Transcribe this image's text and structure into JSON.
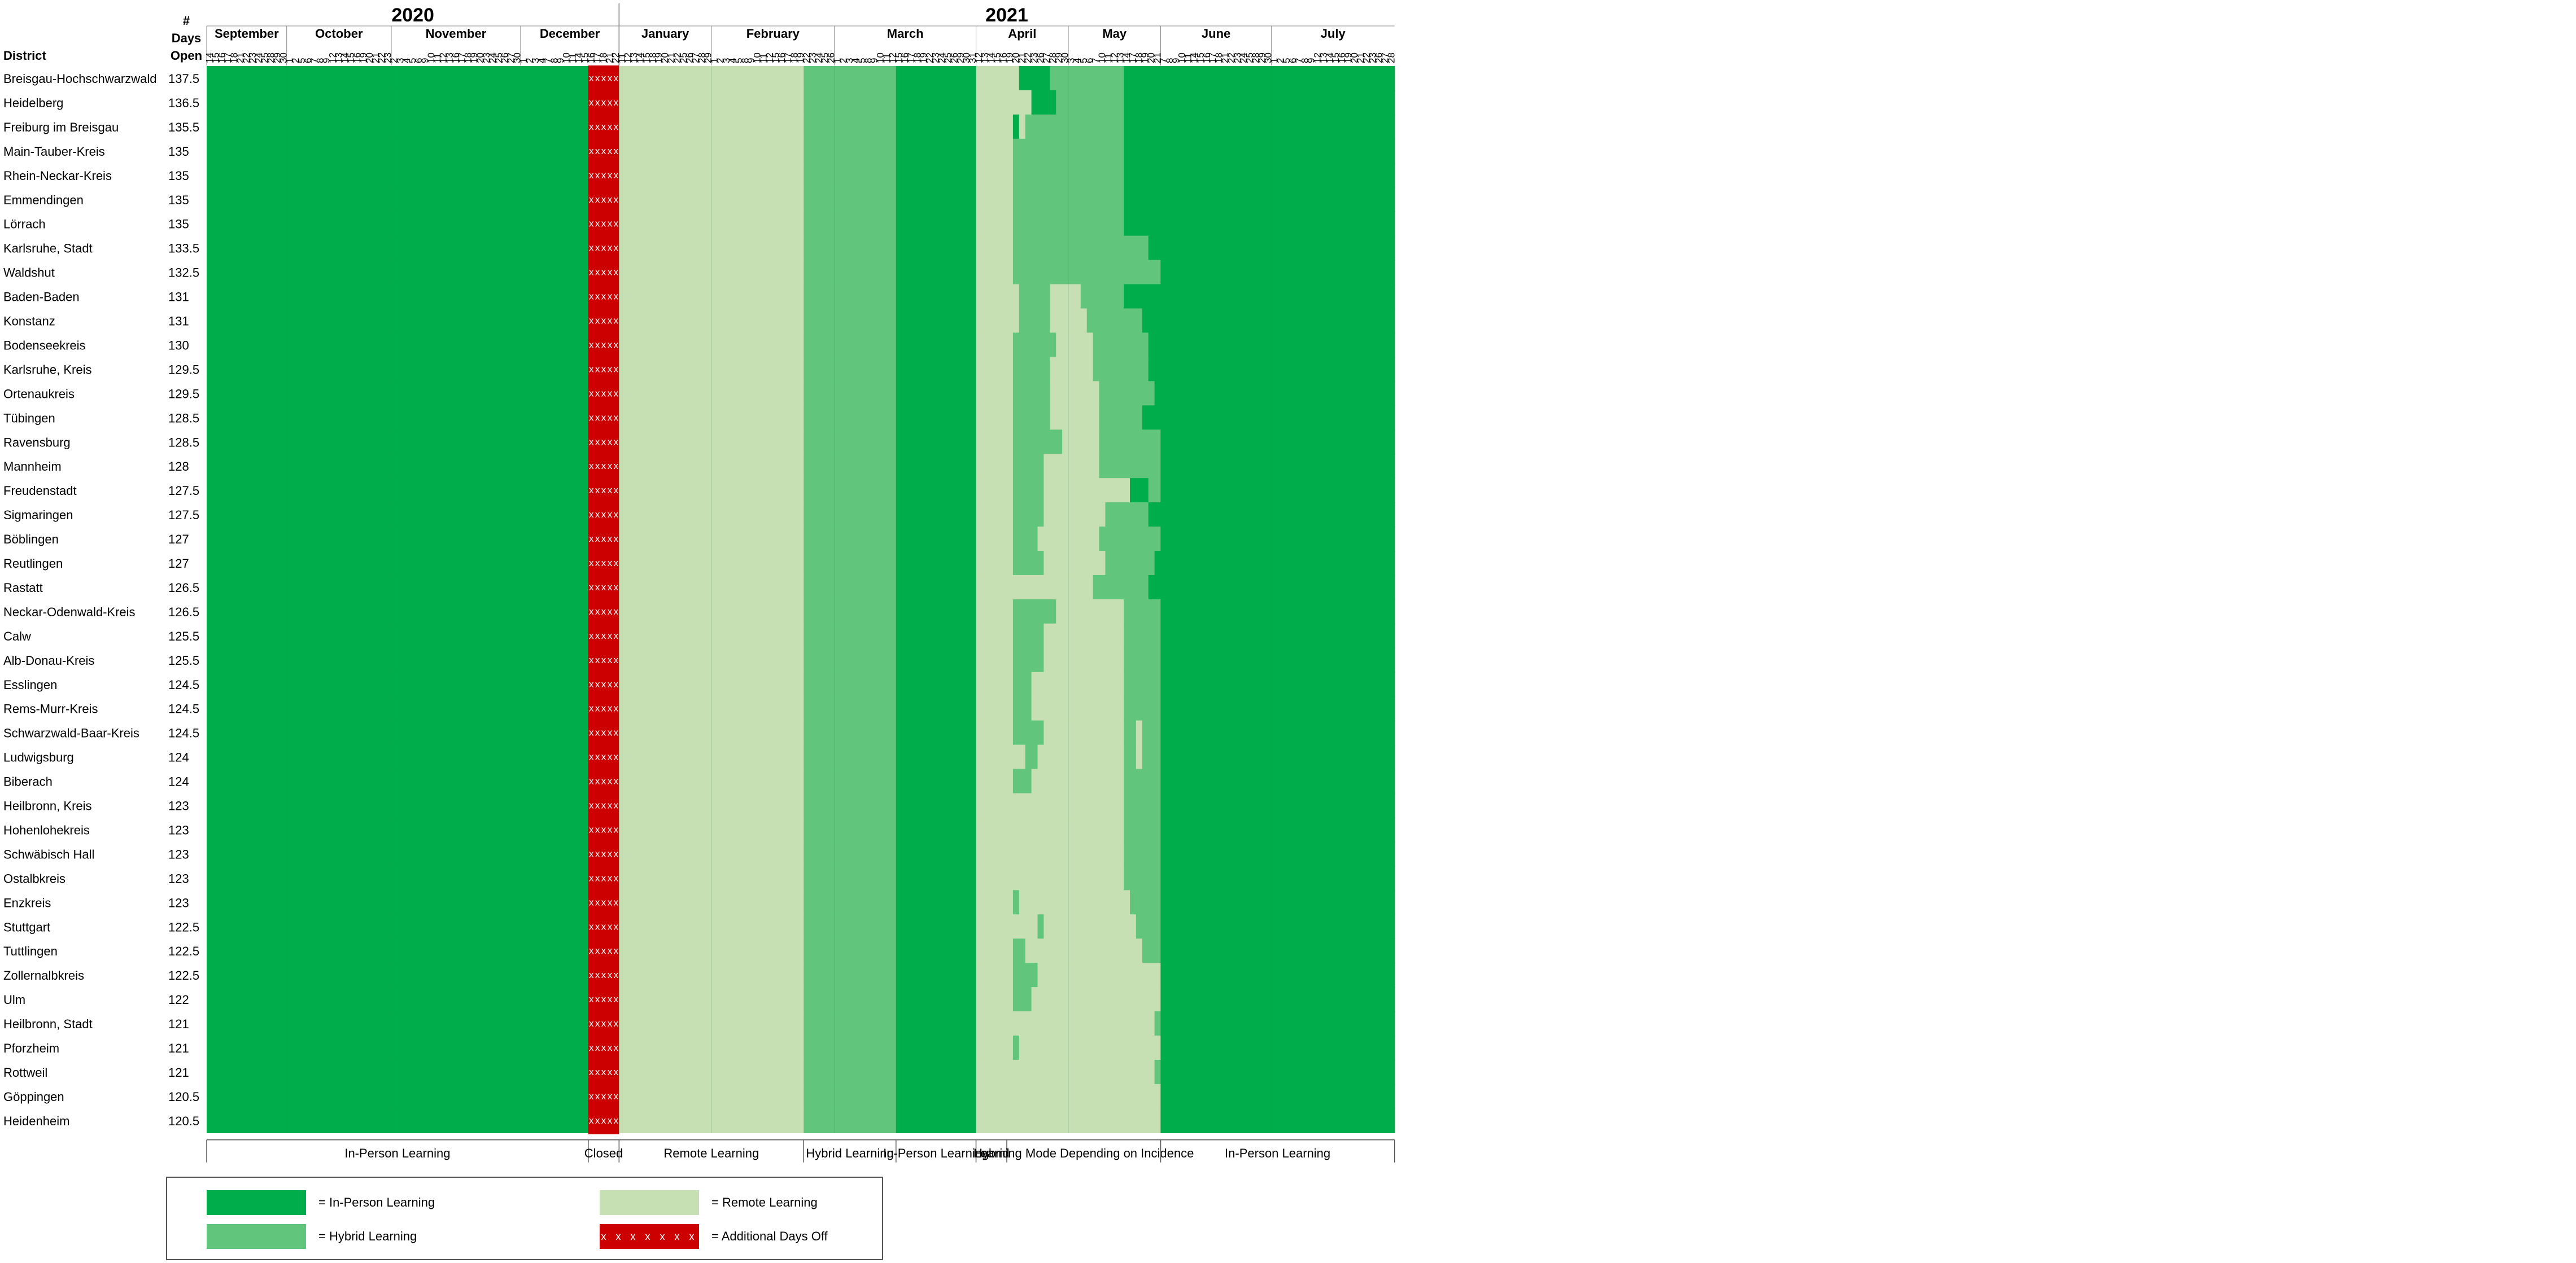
{
  "chart_data": {
    "type": "heatmap",
    "title": "",
    "header": {
      "col1": "District",
      "col2_lines": [
        "#",
        "Days",
        "Open"
      ]
    },
    "years": [
      {
        "label": "2020",
        "span": [
          "2020-09-14",
          "2020-12-22"
        ]
      },
      {
        "label": "2021",
        "span": [
          "2021-01-11",
          "2021-07-28"
        ]
      }
    ],
    "months": [
      {
        "label": "September",
        "year": 2020,
        "days": [
          14,
          15,
          16,
          17,
          18,
          21,
          22,
          23,
          24,
          25,
          28,
          29,
          30
        ]
      },
      {
        "label": "October",
        "year": 2020,
        "days": [
          1,
          2,
          5,
          6,
          7,
          8,
          9,
          12,
          13,
          14,
          15,
          16,
          19,
          20,
          21,
          22,
          23
        ]
      },
      {
        "label": "November",
        "year": 2020,
        "days": [
          2,
          3,
          4,
          5,
          6,
          9,
          10,
          11,
          12,
          13,
          16,
          17,
          18,
          19,
          20,
          23,
          24,
          25,
          26,
          27,
          30
        ]
      },
      {
        "label": "December",
        "year": 2020,
        "days": [
          1,
          2,
          3,
          4,
          7,
          8,
          9,
          10,
          11,
          14,
          15,
          16,
          17,
          18,
          21,
          22
        ]
      },
      {
        "label": "January",
        "year": 2021,
        "days": [
          11,
          12,
          13,
          14,
          15,
          18,
          19,
          20,
          21,
          22,
          25,
          26,
          27,
          28,
          29
        ]
      },
      {
        "label": "February",
        "year": 2021,
        "days": [
          1,
          2,
          3,
          4,
          5,
          8,
          9,
          10,
          11,
          12,
          15,
          16,
          17,
          18,
          19,
          22,
          23,
          24,
          25,
          26
        ]
      },
      {
        "label": "March",
        "year": 2021,
        "days": [
          1,
          2,
          3,
          4,
          5,
          8,
          9,
          10,
          11,
          12,
          15,
          16,
          17,
          18,
          19,
          22,
          23,
          24,
          25,
          26,
          29,
          30,
          31
        ]
      },
      {
        "label": "April",
        "year": 2021,
        "days": [
          12,
          13,
          14,
          15,
          16,
          19,
          20,
          21,
          22,
          23,
          26,
          27,
          28,
          29,
          30
        ]
      },
      {
        "label": "May",
        "year": 2021,
        "days": [
          3,
          4,
          5,
          6,
          7,
          10,
          11,
          12,
          13,
          14,
          17,
          18,
          19,
          20,
          21
        ]
      },
      {
        "label": "June",
        "year": 2021,
        "days": [
          7,
          8,
          9,
          10,
          11,
          14,
          15,
          16,
          17,
          18,
          21,
          22,
          23,
          24,
          25,
          28,
          29,
          30
        ]
      },
      {
        "label": "July",
        "year": 2021,
        "days": [
          1,
          2,
          5,
          6,
          7,
          8,
          9,
          12,
          13,
          14,
          15,
          16,
          19,
          20,
          21,
          22,
          23,
          26,
          27,
          28
        ]
      }
    ],
    "phases": [
      {
        "label": "In-Person Learning",
        "from": "2020-09-14",
        "to": "2020-12-15",
        "mode": "in_person"
      },
      {
        "label": "Closed",
        "from": "2020-12-16",
        "to": "2020-12-22",
        "mode": "off"
      },
      {
        "label": "Remote Learning",
        "from": "2021-01-11",
        "to": "2021-02-19",
        "mode": "remote"
      },
      {
        "label": "Hybrid Learning",
        "from": "2021-02-22",
        "to": "2021-03-12",
        "mode": "hybrid"
      },
      {
        "label": "In-Person Learning",
        "from": "2021-03-15",
        "to": "2021-03-31",
        "mode": "in_person"
      },
      {
        "label": "Hybrid",
        "from": "2021-04-12",
        "to": "2021-04-16",
        "mode": "remote"
      },
      {
        "label": "Learning Mode Depending on Incidence",
        "from": "2021-04-19",
        "to": "2021-05-21",
        "mode": "varies"
      },
      {
        "label": "In-Person Learning",
        "from": "2021-06-07",
        "to": "2021-07-28",
        "mode": "in_person"
      }
    ],
    "districts": [
      {
        "name": "Breisgau-Hochschwarzwald",
        "days_open": "137.5",
        "apr": "RRRRRRRIIIIIHHH",
        "may": "HHHHHHHHHIIIIII"
      },
      {
        "name": "Heidelberg",
        "days_open": "136.5",
        "apr": "RRRRRRRRRIIIIHH",
        "may": "HHHHHHHHHIIIIII"
      },
      {
        "name": "Freiburg im Breisgau",
        "days_open": "135.5",
        "apr": "RRRRRRIRHHHHHHH",
        "may": "HHHHHHHHHIIIIII"
      },
      {
        "name": "Main-Tauber-Kreis",
        "days_open": "135",
        "apr": "RRRRRRHHHHHHHHH",
        "may": "HHHHHHHHHIIIIII"
      },
      {
        "name": "Rhein-Neckar-Kreis",
        "days_open": "135",
        "apr": "RRRRRRHHHHHHHHH",
        "may": "HHHHHHHHHIIIIII"
      },
      {
        "name": "Emmendingen",
        "days_open": "135",
        "apr": "RRRRRRHHHHHHHHH",
        "may": "HHHHHHHHHIIIIII"
      },
      {
        "name": "Lörrach",
        "days_open": "135",
        "apr": "RRRRRRHHHHHHHHH",
        "may": "HHHHHHHHHIIIIII"
      },
      {
        "name": "Karlsruhe, Stadt",
        "days_open": "133.5",
        "apr": "RRRRRRHHHHHHHHH",
        "may": "HHHHHHHHHHHHHII"
      },
      {
        "name": "Waldshut",
        "days_open": "132.5",
        "apr": "RRRRRRHHHHHHHHH",
        "may": "HHHHHHHHHHHHHHH"
      },
      {
        "name": "Baden-Baden",
        "days_open": "131",
        "apr": "RRRRRRRHHHHHRRR",
        "may": "RRHHHHHHHIIIIII"
      },
      {
        "name": "Konstanz",
        "days_open": "131",
        "apr": "RRRRRRRHHHHHRRR",
        "may": "RRRHHHHHHHHHIII"
      },
      {
        "name": "Bodenseekreis",
        "days_open": "130",
        "apr": "RRRRRRHHHHHHHRR",
        "may": "RRRRHHHHHHHHHII"
      },
      {
        "name": "Karlsruhe, Kreis",
        "days_open": "129.5",
        "apr": "RRRRRRHHHHHHRRR",
        "may": "RRRRHHHHHHHHHII"
      },
      {
        "name": "Ortenaukreis",
        "days_open": "129.5",
        "apr": "RRRRRRHHHHHHRRR",
        "may": "RRRRRHHHHHHHHHI"
      },
      {
        "name": "Tübingen",
        "days_open": "128.5",
        "apr": "RRRRRRHHHHHHRRR",
        "may": "RRRRRHHHHHHHIII"
      },
      {
        "name": "Ravensburg",
        "days_open": "128.5",
        "apr": "RRRRRRHHHHHHHHR",
        "may": "RRRRRHHHHHHHHHH"
      },
      {
        "name": "Mannheim",
        "days_open": "128",
        "apr": "RRRRRRHHHHHRRRR",
        "may": "RRRRRHHHHHHHHHH"
      },
      {
        "name": "Freudenstadt",
        "days_open": "127.5",
        "apr": "RRRRRRHHHHHRRRR",
        "may": "RRRRRRRRRRIIIHH"
      },
      {
        "name": "Sigmaringen",
        "days_open": "127.5",
        "apr": "RRRRRRHHHHHRRRR",
        "may": "RRRRRRHHHHHHHII"
      },
      {
        "name": "Böblingen",
        "days_open": "127",
        "apr": "RRRRRRHHHHRRRRR",
        "may": "RRRRRHHHHHHHHHH"
      },
      {
        "name": "Reutlingen",
        "days_open": "127",
        "apr": "RRRRRRHHHHHRRRR",
        "may": "RRRRRRHHHHHHHHI"
      },
      {
        "name": "Rastatt",
        "days_open": "126.5",
        "apr": "RRRRRRRRRRRRRRR",
        "may": "RRRRHHHHHHHHHII"
      },
      {
        "name": "Neckar-Odenwald-Kreis",
        "days_open": "126.5",
        "apr": "RRRRRRHHHHHHHRR",
        "may": "RRRRRRRRRHHHHHH"
      },
      {
        "name": "Calw",
        "days_open": "125.5",
        "apr": "RRRRRRHHHHHRRRR",
        "may": "RRRRRRRRRHHHHHH"
      },
      {
        "name": "Alb-Donau-Kreis",
        "days_open": "125.5",
        "apr": "RRRRRRHHHHHRRRR",
        "may": "RRRRRRRRRHHHHHH"
      },
      {
        "name": "Esslingen",
        "days_open": "124.5",
        "apr": "RRRRRRHHHRRRRRR",
        "may": "RRRRRRRRRHHHHHH"
      },
      {
        "name": "Rems-Murr-Kreis",
        "days_open": "124.5",
        "apr": "RRRRRRHHHRRRRRR",
        "may": "RRRRRRRRRHHHHHH"
      },
      {
        "name": "Schwarzwald-Baar-Kreis",
        "days_open": "124.5",
        "apr": "RRRRRRHHHHHRRRR",
        "may": "RRRRRRRRRHHRHHH"
      },
      {
        "name": "Ludwigsburg",
        "days_open": "124",
        "apr": "RRRRRRRRHHRRRRR",
        "may": "RRRRRRRRRHHRHHH"
      },
      {
        "name": "Biberach",
        "days_open": "124",
        "apr": "RRRRRRHHHRRRRRR",
        "may": "RRRRRRRRRHHHHHH"
      },
      {
        "name": "Heilbronn, Kreis",
        "days_open": "123",
        "apr": "RRRRRRRRRRRRRRR",
        "may": "RRRRRRRRRHHHHHH"
      },
      {
        "name": "Hohenlohekreis",
        "days_open": "123",
        "apr": "RRRRRRRRRRRRRRR",
        "may": "RRRRRRRRRHHHHHH"
      },
      {
        "name": "Schwäbisch Hall",
        "days_open": "123",
        "apr": "RRRRRRRRRRRRRRR",
        "may": "RRRRRRRRRHHHHHH"
      },
      {
        "name": "Ostalbkreis",
        "days_open": "123",
        "apr": "RRRRRRRRRRRRRRR",
        "may": "RRRRRRRRRHHHHHH"
      },
      {
        "name": "Enzkreis",
        "days_open": "123",
        "apr": "RRRRRRHRRRRRRRR",
        "may": "RRRRRRRRRRHHHHH"
      },
      {
        "name": "Stuttgart",
        "days_open": "122.5",
        "apr": "RRRRRRRRRRHRRRR",
        "may": "RRRRRRRRRRRHHHH"
      },
      {
        "name": "Tuttlingen",
        "days_open": "122.5",
        "apr": "RRRRRRHHRRRRRRR",
        "may": "RRRRRRRRRRRRHHH"
      },
      {
        "name": "Zollernalbkreis",
        "days_open": "122.5",
        "apr": "RRRRRRHHHHRRRRR",
        "may": "RRRRRRRRRRRRRRR"
      },
      {
        "name": "Ulm",
        "days_open": "122",
        "apr": "RRRRRRHHHRRRRRR",
        "may": "RRRRRRRRRRRRRRR"
      },
      {
        "name": "Heilbronn, Stadt",
        "days_open": "121",
        "apr": "RRRRRRRRRRRRRRR",
        "may": "RRRRRRRRRRRRRRH"
      },
      {
        "name": "Pforzheim",
        "days_open": "121",
        "apr": "RRRRRRHRRRRRRRR",
        "may": "RRRRRRRRRRRRRRR"
      },
      {
        "name": "Rottweil",
        "days_open": "121",
        "apr": "RRRRRRRRRRRRRRR",
        "may": "RRRRRRRRRRRRRRH"
      },
      {
        "name": "Göppingen",
        "days_open": "120.5",
        "apr": "RRRRRRRRRRRRRRR",
        "may": "RRRRRRRRRRRRRRR"
      },
      {
        "name": "Heidenheim",
        "days_open": "120.5",
        "apr": "RRRRRRRRRRRRRRR",
        "may": "RRRRRRRRRRRRRRR"
      }
    ],
    "cell_codes": {
      "I": "in_person",
      "H": "hybrid",
      "R": "remote"
    },
    "off_marker": "x",
    "legend": [
      {
        "key": "in_person",
        "label": "= In-Person Learning",
        "color": "#00ad4b"
      },
      {
        "key": "hybrid",
        "label": "= Hybrid Learning",
        "color": "#61c67c"
      },
      {
        "key": "remote",
        "label": "= Remote Learning",
        "color": "#c6e0b3"
      },
      {
        "key": "off",
        "label": "= Additional Days Off",
        "color": "#cc0000",
        "marker": "x x x x x x x x"
      }
    ],
    "colors": {
      "in_person": "#00ad4b",
      "hybrid": "#61c67c",
      "remote": "#c6e0b3",
      "off": "#cc0000",
      "grid": "#999999"
    }
  }
}
